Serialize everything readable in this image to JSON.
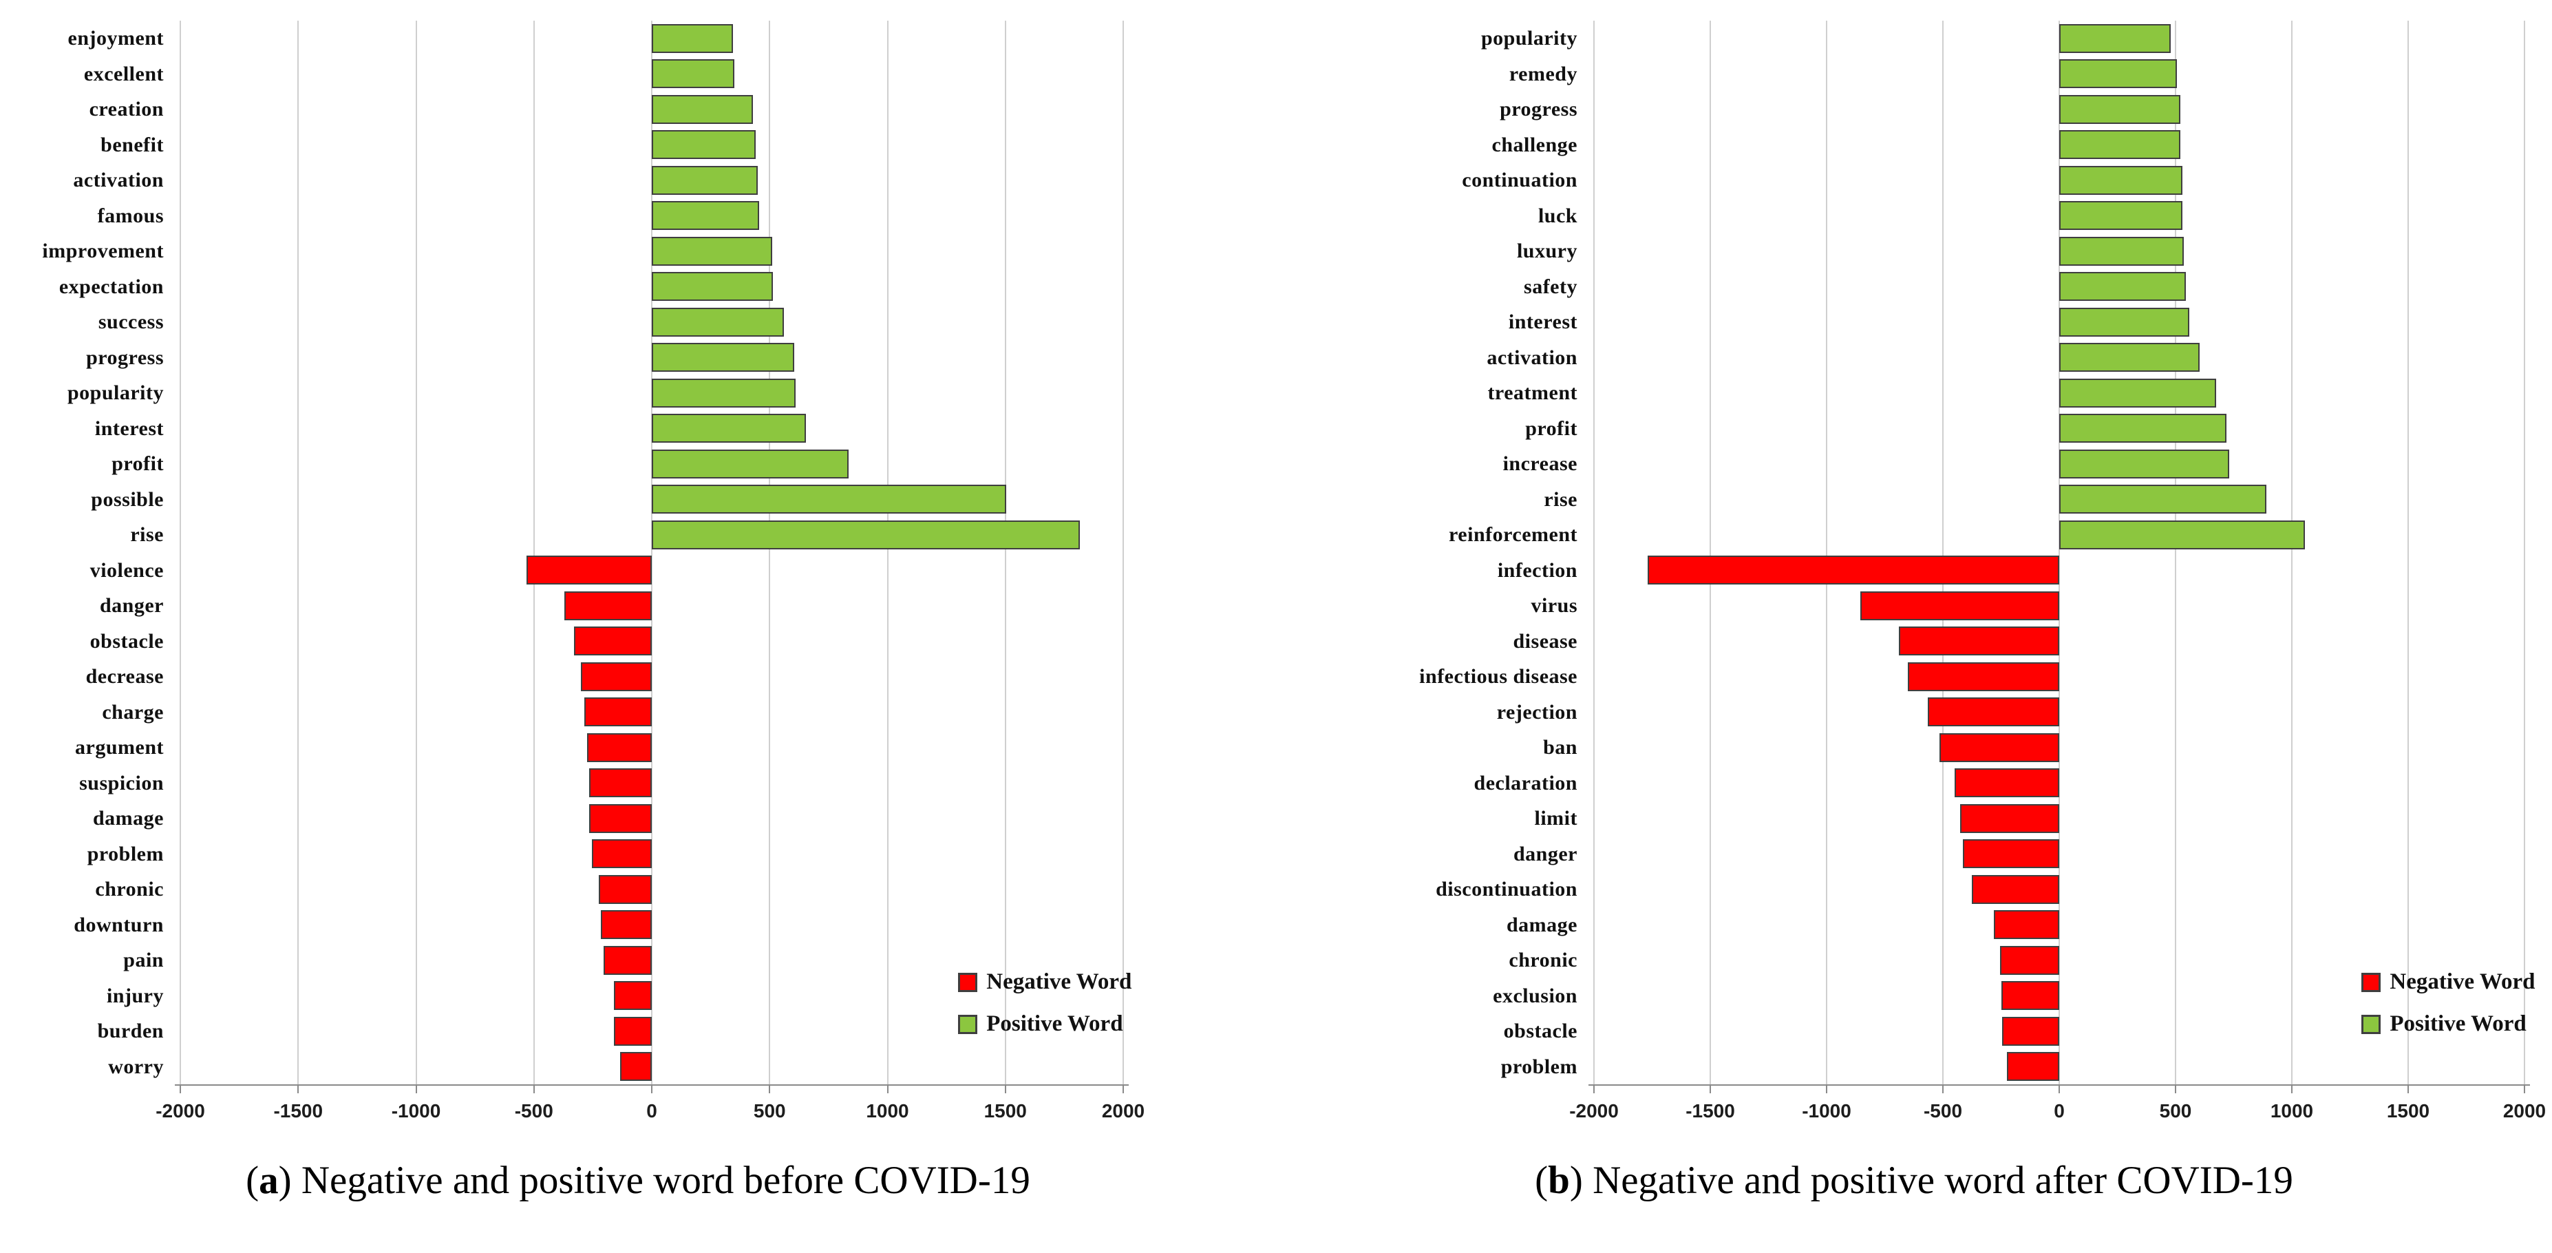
{
  "figure": {
    "background": "#ffffff",
    "colors": {
      "positive_bar": "#8CC63F",
      "negative_bar": "#FF0000",
      "bar_border": "#3F3F3F",
      "gridline": "#CFCFCF",
      "axis_line": "#8A8A8A"
    }
  },
  "chart_data": [
    {
      "id": "a",
      "type": "bar",
      "orientation": "horizontal",
      "caption": {
        "paren_open": "(",
        "letter": "a",
        "paren_close": ")",
        "text": "Negative and positive word before COVID-19"
      },
      "legend": {
        "negative": "Negative Word",
        "positive": "Positive Word",
        "position": "right-lower"
      },
      "xlim": [
        -2000,
        2000
      ],
      "x_ticks": [
        -2000,
        -1500,
        -1000,
        -500,
        0,
        500,
        1000,
        1500,
        2000
      ],
      "grid": "vertical",
      "rows": [
        {
          "label": "enjoyment",
          "value": 345,
          "sentiment": "positive"
        },
        {
          "label": "excellent",
          "value": 350,
          "sentiment": "positive"
        },
        {
          "label": "creation",
          "value": 430,
          "sentiment": "positive"
        },
        {
          "label": "benefit",
          "value": 440,
          "sentiment": "positive"
        },
        {
          "label": "activation",
          "value": 450,
          "sentiment": "positive"
        },
        {
          "label": "famous",
          "value": 455,
          "sentiment": "positive"
        },
        {
          "label": "improvement",
          "value": 510,
          "sentiment": "positive"
        },
        {
          "label": "expectation",
          "value": 515,
          "sentiment": "positive"
        },
        {
          "label": "success",
          "value": 560,
          "sentiment": "positive"
        },
        {
          "label": "progress",
          "value": 605,
          "sentiment": "positive"
        },
        {
          "label": "popularity",
          "value": 610,
          "sentiment": "positive"
        },
        {
          "label": "interest",
          "value": 655,
          "sentiment": "positive"
        },
        {
          "label": "profit",
          "value": 835,
          "sentiment": "positive"
        },
        {
          "label": "possible",
          "value": 1505,
          "sentiment": "positive"
        },
        {
          "label": "rise",
          "value": 1815,
          "sentiment": "positive"
        },
        {
          "label": "violence",
          "value": -530,
          "sentiment": "negative"
        },
        {
          "label": "danger",
          "value": -370,
          "sentiment": "negative"
        },
        {
          "label": "obstacle",
          "value": -330,
          "sentiment": "negative"
        },
        {
          "label": "decrease",
          "value": -300,
          "sentiment": "negative"
        },
        {
          "label": "charge",
          "value": -285,
          "sentiment": "negative"
        },
        {
          "label": "argument",
          "value": -275,
          "sentiment": "negative"
        },
        {
          "label": "suspicion",
          "value": -265,
          "sentiment": "negative"
        },
        {
          "label": "damage",
          "value": -265,
          "sentiment": "negative"
        },
        {
          "label": "problem",
          "value": -255,
          "sentiment": "negative"
        },
        {
          "label": "chronic",
          "value": -225,
          "sentiment": "negative"
        },
        {
          "label": "downturn",
          "value": -215,
          "sentiment": "negative"
        },
        {
          "label": "pain",
          "value": -205,
          "sentiment": "negative"
        },
        {
          "label": "injury",
          "value": -160,
          "sentiment": "negative"
        },
        {
          "label": "burden",
          "value": -160,
          "sentiment": "negative"
        },
        {
          "label": "worry",
          "value": -135,
          "sentiment": "negative"
        }
      ]
    },
    {
      "id": "b",
      "type": "bar",
      "orientation": "horizontal",
      "caption": {
        "paren_open": "(",
        "letter": "b",
        "paren_close": ")",
        "text": "Negative and positive word after COVID-19"
      },
      "legend": {
        "negative": "Negative Word",
        "positive": "Positive Word",
        "position": "right-lower"
      },
      "xlim": [
        -2000,
        2000
      ],
      "x_ticks": [
        -2000,
        -1500,
        -1000,
        -500,
        0,
        500,
        1000,
        1500,
        2000
      ],
      "grid": "vertical",
      "rows": [
        {
          "label": "popularity",
          "value": 480,
          "sentiment": "positive"
        },
        {
          "label": "remedy",
          "value": 505,
          "sentiment": "positive"
        },
        {
          "label": "progress",
          "value": 520,
          "sentiment": "positive"
        },
        {
          "label": "challenge",
          "value": 520,
          "sentiment": "positive"
        },
        {
          "label": "continuation",
          "value": 530,
          "sentiment": "positive"
        },
        {
          "label": "luck",
          "value": 530,
          "sentiment": "positive"
        },
        {
          "label": "luxury",
          "value": 535,
          "sentiment": "positive"
        },
        {
          "label": "safety",
          "value": 545,
          "sentiment": "positive"
        },
        {
          "label": "interest",
          "value": 560,
          "sentiment": "positive"
        },
        {
          "label": "activation",
          "value": 605,
          "sentiment": "positive"
        },
        {
          "label": "treatment",
          "value": 675,
          "sentiment": "positive"
        },
        {
          "label": "profit",
          "value": 720,
          "sentiment": "positive"
        },
        {
          "label": "increase",
          "value": 730,
          "sentiment": "positive"
        },
        {
          "label": "rise",
          "value": 890,
          "sentiment": "positive"
        },
        {
          "label": "reinforcement",
          "value": 1055,
          "sentiment": "positive"
        },
        {
          "label": "infection",
          "value": -1770,
          "sentiment": "negative"
        },
        {
          "label": "virus",
          "value": -855,
          "sentiment": "negative"
        },
        {
          "label": "disease",
          "value": -690,
          "sentiment": "negative"
        },
        {
          "label": "infectious disease",
          "value": -650,
          "sentiment": "negative"
        },
        {
          "label": "rejection",
          "value": -565,
          "sentiment": "negative"
        },
        {
          "label": "ban",
          "value": -515,
          "sentiment": "negative"
        },
        {
          "label": "declaration",
          "value": -450,
          "sentiment": "negative"
        },
        {
          "label": "limit",
          "value": -425,
          "sentiment": "negative"
        },
        {
          "label": "danger",
          "value": -415,
          "sentiment": "negative"
        },
        {
          "label": "discontinuation",
          "value": -375,
          "sentiment": "negative"
        },
        {
          "label": "damage",
          "value": -280,
          "sentiment": "negative"
        },
        {
          "label": "chronic",
          "value": -255,
          "sentiment": "negative"
        },
        {
          "label": "exclusion",
          "value": -250,
          "sentiment": "negative"
        },
        {
          "label": "obstacle",
          "value": -245,
          "sentiment": "negative"
        },
        {
          "label": "problem",
          "value": -225,
          "sentiment": "negative"
        }
      ]
    }
  ]
}
